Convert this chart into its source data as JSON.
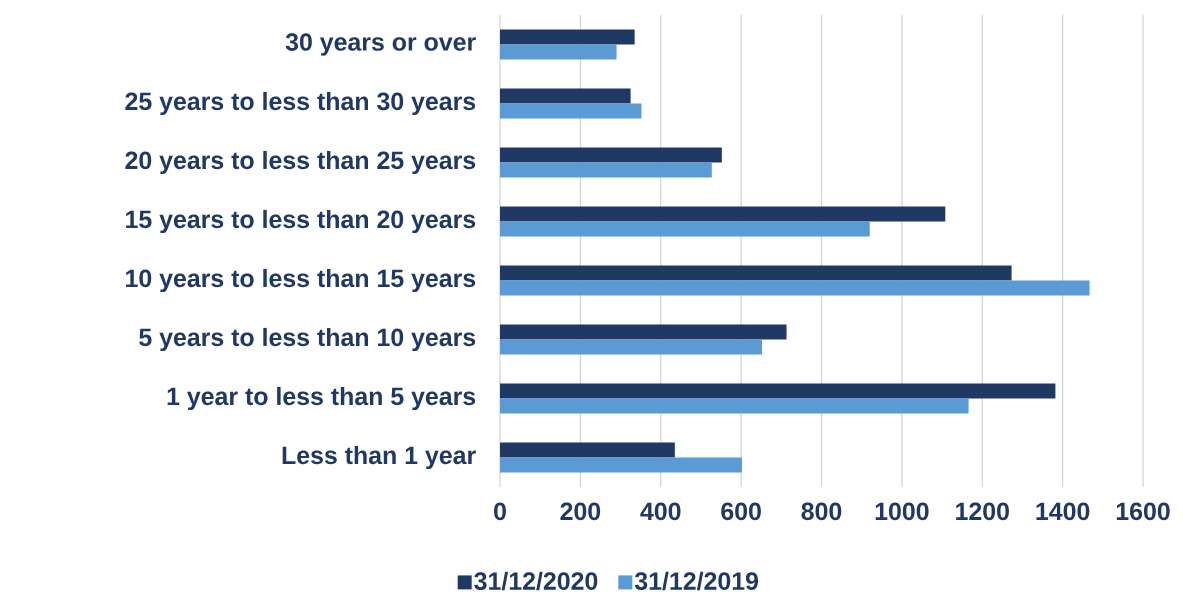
{
  "chart_data": {
    "type": "bar",
    "orientation": "horizontal",
    "categories": [
      "30 years or over",
      "25 years to less than 30 years",
      "20 years to less than 25 years",
      "15 years to less than 20 years",
      "10 years to less than 15 years",
      "5 years to less than 10 years",
      "1 year to less than 5 years",
      "Less than 1 year"
    ],
    "series": [
      {
        "name": "31/12/2020",
        "color": "#203864",
        "values": [
          335,
          325,
          552,
          1108,
          1273,
          713,
          1382,
          435
        ]
      },
      {
        "name": "31/12/2019",
        "color": "#5b9bd5",
        "values": [
          290,
          352,
          527,
          920,
          1467,
          652,
          1166,
          602
        ]
      }
    ],
    "xlim": [
      0,
      1600
    ],
    "xticks": [
      0,
      200,
      400,
      600,
      800,
      1000,
      1200,
      1400,
      1600
    ],
    "grid": "x",
    "legend": "bottom"
  }
}
